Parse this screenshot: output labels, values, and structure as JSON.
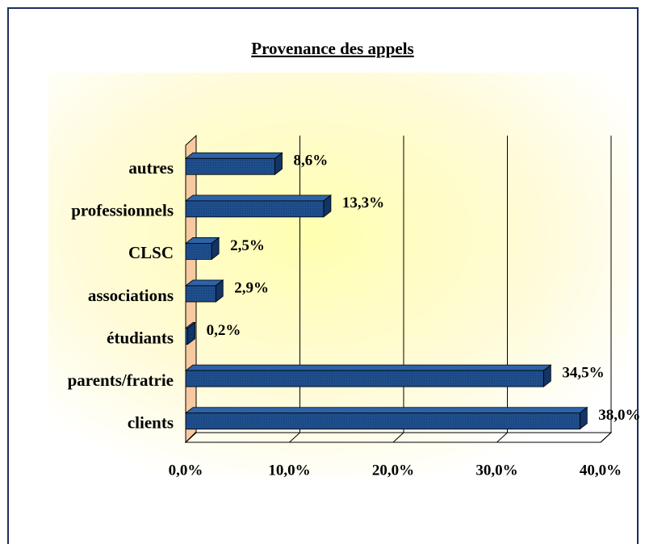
{
  "chart_data": {
    "type": "bar",
    "orientation": "horizontal",
    "title": "Provenance des appels",
    "categories": [
      "autres",
      "professionnels",
      "CLSC",
      "associations",
      "étudiants",
      "parents/fratrie",
      "clients"
    ],
    "values": [
      8.6,
      13.3,
      2.5,
      2.9,
      0.2,
      34.5,
      38.0
    ],
    "value_labels": [
      "8,6%",
      "13,3%",
      "2,5%",
      "2,9%",
      "0,2%",
      "34,5%",
      "38,0%"
    ],
    "color": "#1f4e8c",
    "xlim": [
      0,
      40
    ],
    "xticks": [
      {
        "value": 0,
        "label": "0,0%"
      },
      {
        "value": 10,
        "label": "10,0%"
      },
      {
        "value": 20,
        "label": "20,0%"
      },
      {
        "value": 30,
        "label": "30,0%"
      },
      {
        "value": 40,
        "label": "40,0%"
      }
    ],
    "grid": true
  }
}
